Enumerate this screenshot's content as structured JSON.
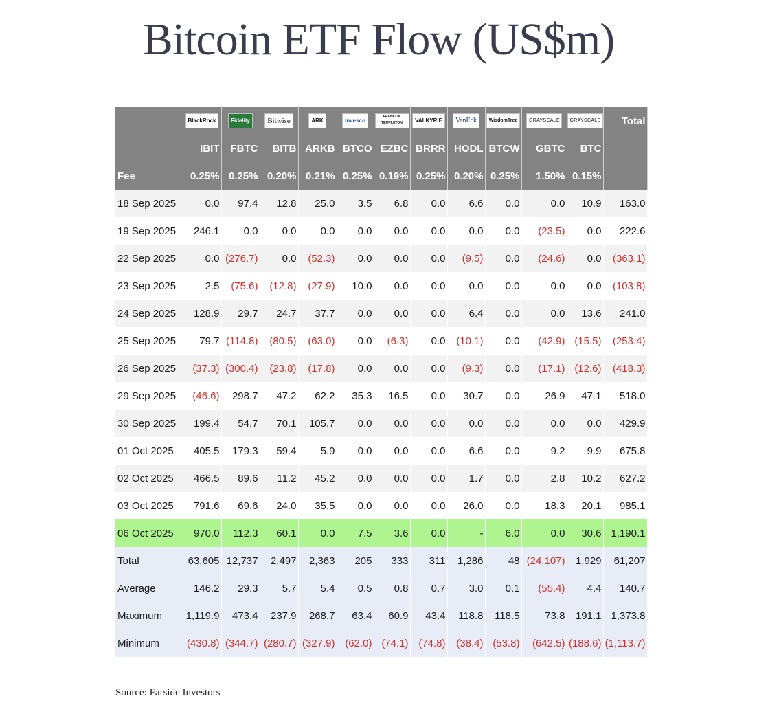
{
  "title": "Bitcoin ETF Flow (US$m)",
  "source": "Source: Farside Investors",
  "issuers": [
    "BlackRock",
    "Fidelity",
    "Bitwise",
    "ARK",
    "Invesco",
    "FRANKLIN TEMPLETON",
    "VALKYRIE",
    "VanEck",
    "WisdomTree",
    "GRAYSCALE",
    "GRAYSCALE"
  ],
  "header_total": "Total",
  "tickers": [
    "IBIT",
    "FBTC",
    "BITB",
    "ARKB",
    "BTCO",
    "EZBC",
    "BRRR",
    "HODL",
    "BTCW",
    "GBTC",
    "BTC"
  ],
  "fee_label": "Fee",
  "fees": [
    "0.25%",
    "0.25%",
    "0.20%",
    "0.21%",
    "0.25%",
    "0.19%",
    "0.25%",
    "0.20%",
    "0.25%",
    "1.50%",
    "0.15%"
  ],
  "rows": [
    {
      "label": "18 Sep 2025",
      "values": [
        "0.0",
        "97.4",
        "12.8",
        "25.0",
        "3.5",
        "6.8",
        "0.0",
        "6.6",
        "0.0",
        "0.0",
        "10.9",
        "163.0"
      ]
    },
    {
      "label": "19 Sep 2025",
      "values": [
        "246.1",
        "0.0",
        "0.0",
        "0.0",
        "0.0",
        "0.0",
        "0.0",
        "0.0",
        "0.0",
        "(23.5)",
        "0.0",
        "222.6"
      ]
    },
    {
      "label": "22 Sep 2025",
      "values": [
        "0.0",
        "(276.7)",
        "0.0",
        "(52.3)",
        "0.0",
        "0.0",
        "0.0",
        "(9.5)",
        "0.0",
        "(24.6)",
        "0.0",
        "(363.1)"
      ]
    },
    {
      "label": "23 Sep 2025",
      "values": [
        "2.5",
        "(75.6)",
        "(12.8)",
        "(27.9)",
        "10.0",
        "0.0",
        "0.0",
        "0.0",
        "0.0",
        "0.0",
        "0.0",
        "(103.8)"
      ]
    },
    {
      "label": "24 Sep 2025",
      "values": [
        "128.9",
        "29.7",
        "24.7",
        "37.7",
        "0.0",
        "0.0",
        "0.0",
        "6.4",
        "0.0",
        "0.0",
        "13.6",
        "241.0"
      ]
    },
    {
      "label": "25 Sep 2025",
      "values": [
        "79.7",
        "(114.8)",
        "(80.5)",
        "(63.0)",
        "0.0",
        "(6.3)",
        "0.0",
        "(10.1)",
        "0.0",
        "(42.9)",
        "(15.5)",
        "(253.4)"
      ]
    },
    {
      "label": "26 Sep 2025",
      "values": [
        "(37.3)",
        "(300.4)",
        "(23.8)",
        "(17.8)",
        "0.0",
        "0.0",
        "0.0",
        "(9.3)",
        "0.0",
        "(17.1)",
        "(12.6)",
        "(418.3)"
      ]
    },
    {
      "label": "29 Sep 2025",
      "values": [
        "(46.6)",
        "298.7",
        "47.2",
        "62.2",
        "35.3",
        "16.5",
        "0.0",
        "30.7",
        "0.0",
        "26.9",
        "47.1",
        "518.0"
      ]
    },
    {
      "label": "30 Sep 2025",
      "values": [
        "199.4",
        "54.7",
        "70.1",
        "105.7",
        "0.0",
        "0.0",
        "0.0",
        "0.0",
        "0.0",
        "0.0",
        "0.0",
        "429.9"
      ]
    },
    {
      "label": "01 Oct 2025",
      "values": [
        "405.5",
        "179.3",
        "59.4",
        "5.9",
        "0.0",
        "0.0",
        "0.0",
        "6.6",
        "0.0",
        "9.2",
        "9.9",
        "675.8"
      ]
    },
    {
      "label": "02 Oct 2025",
      "values": [
        "466.5",
        "89.6",
        "11.2",
        "45.2",
        "0.0",
        "0.0",
        "0.0",
        "1.7",
        "0.0",
        "2.8",
        "10.2",
        "627.2"
      ]
    },
    {
      "label": "03 Oct 2025",
      "values": [
        "791.6",
        "69.6",
        "24.0",
        "35.5",
        "0.0",
        "0.0",
        "0.0",
        "26.0",
        "0.0",
        "18.3",
        "20.1",
        "985.1"
      ]
    },
    {
      "label": "06 Oct 2025",
      "highlight": true,
      "values": [
        "970.0",
        "112.3",
        "60.1",
        "0.0",
        "7.5",
        "3.6",
        "0.0",
        "-",
        "6.0",
        "0.0",
        "30.6",
        "1,190.1"
      ]
    }
  ],
  "stats": [
    {
      "label": "Total",
      "values": [
        "63,605",
        "12,737",
        "2,497",
        "2,363",
        "205",
        "333",
        "311",
        "1,286",
        "48",
        "(24,107)",
        "1,929",
        "61,207"
      ]
    },
    {
      "label": "Average",
      "values": [
        "146.2",
        "29.3",
        "5.7",
        "5.4",
        "0.5",
        "0.8",
        "0.7",
        "3.0",
        "0.1",
        "(55.4)",
        "4.4",
        "140.7"
      ]
    },
    {
      "label": "Maximum",
      "values": [
        "1,119.9",
        "473.4",
        "237.9",
        "268.7",
        "63.4",
        "60.9",
        "43.4",
        "118.8",
        "118.5",
        "73.8",
        "191.1",
        "1,373.8"
      ]
    },
    {
      "label": "Minimum",
      "values": [
        "(430.8)",
        "(344.7)",
        "(280.7)",
        "(327.9)",
        "(62.0)",
        "(74.1)",
        "(74.8)",
        "(38.4)",
        "(53.8)",
        "(642.5)",
        "(188.6)",
        "(1,113.7)"
      ]
    }
  ]
}
